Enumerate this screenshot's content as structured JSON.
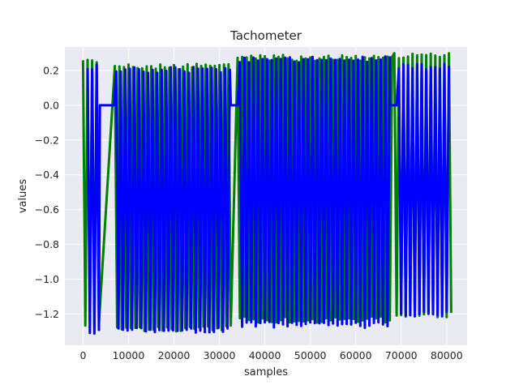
{
  "chart_data": {
    "type": "line",
    "title": "Tachometer",
    "xlabel": "samples",
    "ylabel": "values",
    "xlim": [
      -4000,
      84500
    ],
    "ylim": [
      -1.38,
      0.335
    ],
    "x_ticks": [
      0,
      10000,
      20000,
      30000,
      40000,
      50000,
      60000,
      70000,
      80000
    ],
    "y_ticks": [
      0.2,
      0.0,
      -0.2,
      -0.4,
      -0.6,
      -0.8,
      -1.0,
      -1.2
    ],
    "x_tick_labels": [
      "0",
      "10000",
      "20000",
      "30000",
      "40000",
      "50000",
      "60000",
      "70000",
      "80000"
    ],
    "y_tick_labels": [
      "0.2",
      "0.0",
      "−0.2",
      "−0.4",
      "−0.6",
      "−0.8",
      "−1.0",
      "−1.2"
    ],
    "grid": true,
    "background_color": "#EAEAF2",
    "grid_color": "#FFFFFF",
    "series": [
      {
        "color": "#008000",
        "envelope": [
          {
            "x_start": 0,
            "x_end": 3800,
            "high": 0.27,
            "low": -1.28
          },
          {
            "x_start": 7000,
            "x_end": 32800,
            "high": 0.24,
            "low": -1.3
          },
          {
            "x_start": 34000,
            "x_end": 68000,
            "high": 0.29,
            "low": -1.25
          },
          {
            "x_start": 68500,
            "x_end": 81000,
            "high": 0.3,
            "low": -1.22
          }
        ]
      },
      {
        "color": "#0000FF",
        "envelope": [
          {
            "x_start": 500,
            "x_end": 3700,
            "high": 0.24,
            "low": -1.32
          },
          {
            "x_start": 3700,
            "x_end": 6800,
            "high": 0.0,
            "low": 0.0
          },
          {
            "x_start": 6800,
            "x_end": 32500,
            "high": 0.22,
            "low": -1.31
          },
          {
            "x_start": 32500,
            "x_end": 34000,
            "high": 0.0,
            "low": 0.0
          },
          {
            "x_start": 34000,
            "x_end": 67500,
            "high": 0.28,
            "low": -1.28
          },
          {
            "x_start": 67500,
            "x_end": 69000,
            "high": 0.0,
            "low": 0.0
          },
          {
            "x_start": 69000,
            "x_end": 80500,
            "high": 0.24,
            "low": -1.22
          }
        ]
      }
    ]
  }
}
